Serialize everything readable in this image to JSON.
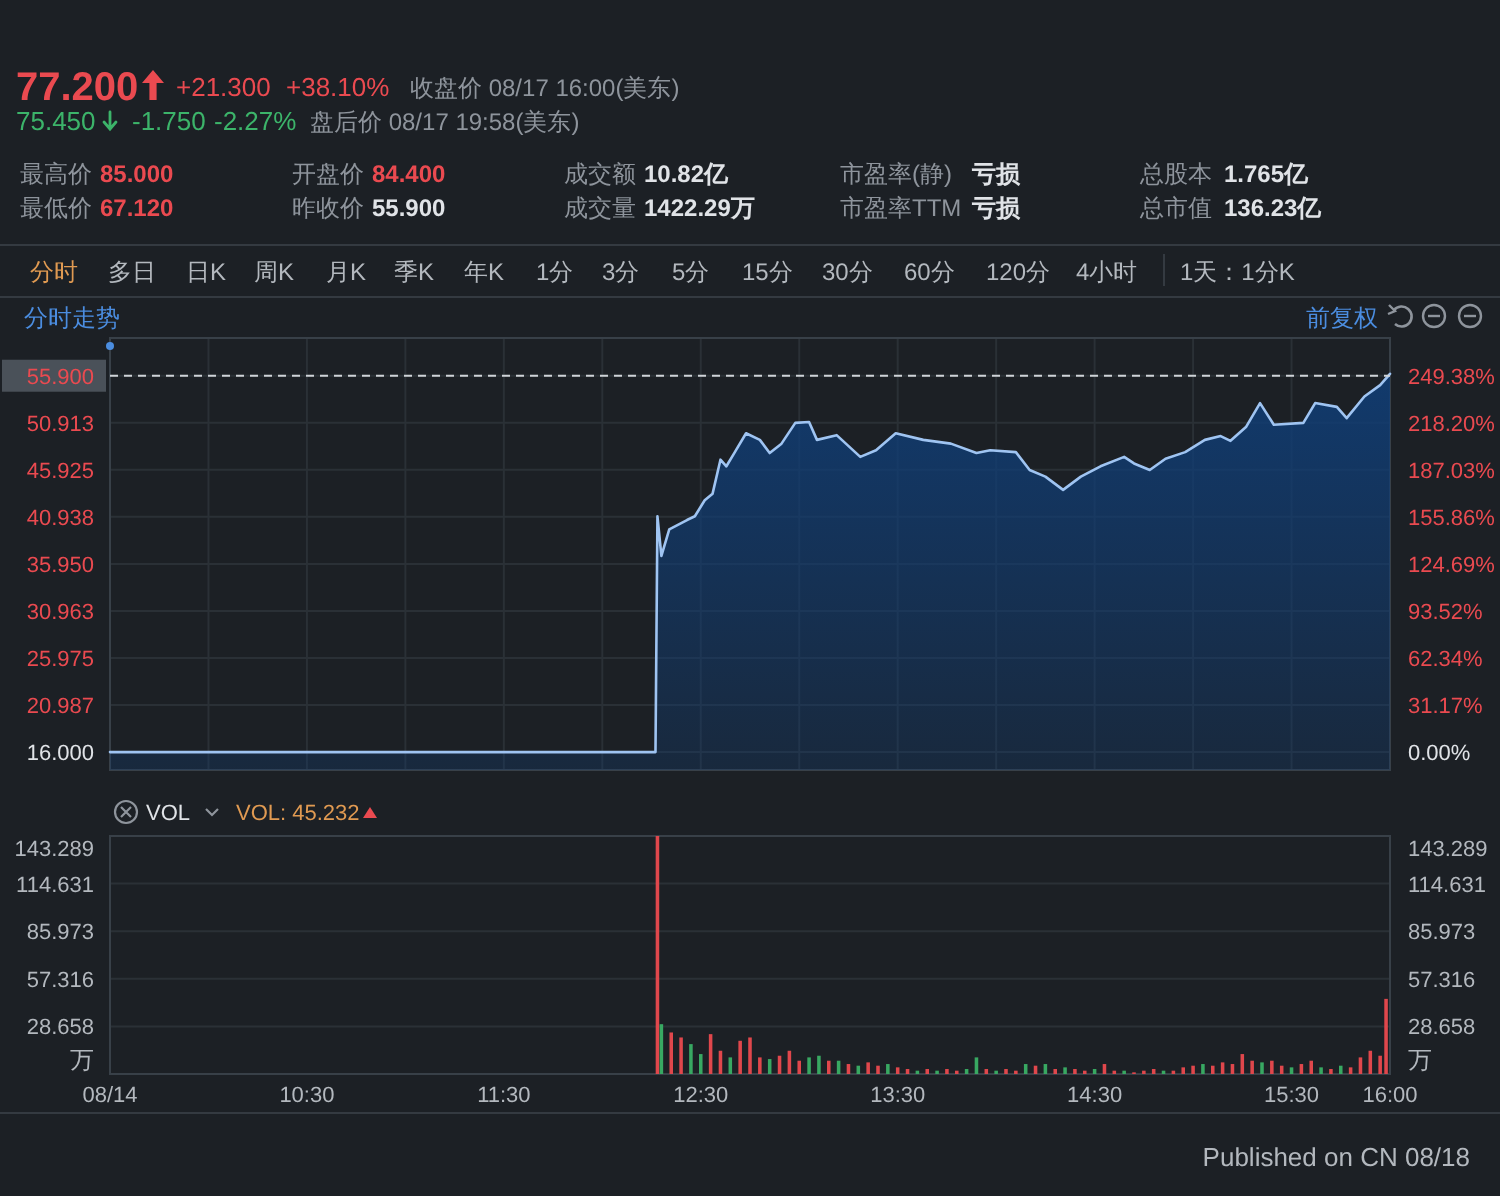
{
  "chart_data": [
    {
      "type": "other",
      "annotations": [
        "77.200",
        "+21.300",
        "+38.10%",
        "收盘价 08/17 16:00(美东)",
        "75.450",
        "-1.750",
        "-2.27%",
        "盘后价 08/17 19:58(美东)",
        "最高价",
        "85.000",
        "最低价",
        "67.120",
        "开盘价",
        "84.400",
        "昨收价",
        "55.900",
        "成交额",
        "10.82亿",
        "成交量",
        "1422.29万",
        "市盈率(静)",
        "亏损",
        "市盈率TTM",
        "亏损",
        "总股本",
        "1.765亿",
        "总市值",
        "136.23亿",
        "分时",
        "多日",
        "日K",
        "周K",
        "月K",
        "季K",
        "年K",
        "1分",
        "3分",
        "5分",
        "15分",
        "30分",
        "60分",
        "120分",
        "4小时",
        "1天：1分K"
      ]
    },
    {
      "type": "area",
      "title": "分时走势",
      "annotations": [
        "前复权"
      ],
      "x": [
        9.5,
        12.27,
        12.28,
        12.3,
        12.34,
        12.43,
        12.47,
        12.52,
        12.56,
        12.6,
        12.63,
        12.67,
        12.73,
        12.8,
        12.85,
        12.91,
        12.98,
        13.05,
        13.09,
        13.19,
        13.31,
        13.39,
        13.49,
        13.63,
        13.77,
        13.9,
        13.97,
        14.1,
        14.17,
        14.25,
        14.34,
        14.43,
        14.53,
        14.65,
        14.7,
        14.78,
        14.86,
        14.96,
        15.06,
        15.14,
        15.19,
        15.27,
        15.34,
        15.41,
        15.56,
        15.62,
        15.73,
        15.78,
        15.87,
        15.95,
        16
      ],
      "values": [
        16,
        16,
        41.0,
        36.8,
        39.6,
        40.6,
        41.0,
        42.7,
        43.4,
        47.0,
        46.3,
        47.7,
        49.8,
        49.1,
        47.7,
        48.7,
        50.9,
        51.0,
        49.1,
        49.6,
        47.3,
        48.0,
        49.8,
        49.1,
        48.7,
        47.7,
        48.0,
        47.8,
        45.9,
        45.2,
        43.8,
        45.2,
        46.3,
        47.3,
        46.6,
        45.9,
        47.1,
        47.8,
        49.1,
        49.5,
        49.0,
        50.5,
        53.0,
        50.7,
        50.9,
        53.0,
        52.6,
        51.4,
        53.7,
        54.9,
        56.1
      ],
      "color": "#9fc4f2",
      "xlim": [
        9.5,
        16
      ],
      "xticks": [
        9.5,
        10,
        10.5,
        11,
        11.5,
        12,
        12.5,
        13,
        13.5,
        14,
        14.5,
        15,
        15.5,
        16
      ],
      "ylim": [
        14.1,
        59.9
      ],
      "yticks": [
        {
          "value": 16,
          "label": "16.000"
        },
        20.987,
        25.975,
        30.963,
        {
          "value": 35.95,
          "label": "35.950"
        },
        40.938,
        45.925,
        50.913,
        {
          "value": 55.9,
          "label": "55.900"
        }
      ],
      "y2lim": [
        -11.9,
        274.4
      ],
      "y2ticks": [
        {
          "value": 0,
          "label": "0.00%"
        },
        {
          "value": 31.17,
          "label": "31.17%"
        },
        {
          "value": 62.34,
          "label": "62.34%"
        },
        {
          "value": 93.52,
          "label": "93.52%"
        },
        {
          "value": 124.69,
          "label": "124.69%"
        },
        {
          "value": 155.86,
          "label": "155.86%"
        },
        {
          "value": 187.03,
          "label": "187.03%"
        },
        {
          "value": 218.2,
          "label": "218.20%"
        },
        {
          "value": 249.38,
          "label": "249.38%"
        }
      ],
      "ref_lines": [
        {
          "axis": "y",
          "value": 55.9,
          "color": "#cfd3d8",
          "line_style": "dashed"
        }
      ],
      "grid": true,
      "tick_labels": "y"
    },
    {
      "type": "bar",
      "title": "VOL",
      "annotations": [
        "VOL: 45.232",
        "Published on CN 08/18"
      ],
      "x": [
        12.28,
        12.3,
        12.35,
        12.4,
        12.45,
        12.5,
        12.55,
        12.6,
        12.65,
        12.7,
        12.75,
        12.8,
        12.85,
        12.9,
        12.95,
        13,
        13.05,
        13.1,
        13.15,
        13.2,
        13.25,
        13.3,
        13.35,
        13.4,
        13.45,
        13.5,
        13.55,
        13.6,
        13.65,
        13.7,
        13.75,
        13.8,
        13.85,
        13.9,
        13.95,
        14,
        14.05,
        14.1,
        14.15,
        14.2,
        14.25,
        14.3,
        14.35,
        14.4,
        14.45,
        14.5,
        14.55,
        14.6,
        14.65,
        14.7,
        14.75,
        14.8,
        14.85,
        14.9,
        14.95,
        15,
        15.05,
        15.1,
        15.15,
        15.2,
        15.25,
        15.3,
        15.35,
        15.4,
        15.45,
        15.5,
        15.55,
        15.6,
        15.65,
        15.7,
        15.75,
        15.8,
        15.85,
        15.9,
        15.95,
        15.98
      ],
      "values": [
        143.289,
        30,
        25,
        22,
        18,
        12,
        24,
        14,
        10,
        20,
        22,
        10,
        9,
        11,
        14,
        8,
        10,
        11,
        8,
        8,
        6,
        5,
        7,
        5,
        6,
        4,
        3,
        2,
        3,
        2,
        3,
        2,
        3,
        10,
        3,
        2,
        3,
        2,
        6,
        5,
        6,
        3,
        4,
        3,
        2,
        3,
        6,
        2,
        2,
        1,
        2,
        3,
        2,
        2,
        4,
        5,
        6,
        5,
        7,
        6,
        12,
        8,
        7,
        8,
        5,
        4,
        6,
        8,
        4,
        3,
        5,
        4,
        10,
        14,
        11,
        45.232
      ],
      "colors": [
        "#e0474c",
        "#38a862",
        "#e0474c",
        "#e0474c",
        "#38a862",
        "#38a862",
        "#e0474c",
        "#e0474c",
        "#38a862",
        "#e0474c",
        "#e0474c",
        "#e0474c",
        "#38a862",
        "#e0474c",
        "#e0474c",
        "#e0474c",
        "#38a862",
        "#38a862",
        "#e0474c",
        "#38a862",
        "#e0474c",
        "#38a862",
        "#e0474c",
        "#e0474c",
        "#38a862",
        "#e0474c",
        "#e0474c",
        "#38a862",
        "#e0474c",
        "#38a862",
        "#e0474c",
        "#e0474c",
        "#38a862",
        "#38a862",
        "#e0474c",
        "#38a862",
        "#e0474c",
        "#e0474c",
        "#38a862",
        "#e0474c",
        "#38a862",
        "#e0474c",
        "#38a862",
        "#e0474c",
        "#e0474c",
        "#38a862",
        "#e0474c",
        "#e0474c",
        "#38a862",
        "#e0474c",
        "#e0474c",
        "#e0474c",
        "#38a862",
        "#e0474c",
        "#e0474c",
        "#e0474c",
        "#38a862",
        "#e0474c",
        "#e0474c",
        "#e0474c",
        "#e0474c",
        "#e0474c",
        "#38a862",
        "#e0474c",
        "#e0474c",
        "#38a862",
        "#e0474c",
        "#e0474c",
        "#38a862",
        "#e0474c",
        "#38a862",
        "#e0474c",
        "#e0474c",
        "#e0474c",
        "#e0474c",
        "#e0474c"
      ],
      "xlim": [
        9.5,
        16
      ],
      "xticks": [
        {
          "value": 9.5,
          "label": "08/14"
        },
        {
          "value": 10.5,
          "label": "10:30"
        },
        {
          "value": 11.5,
          "label": "11:30"
        },
        {
          "value": 12.5,
          "label": "12:30"
        },
        {
          "value": 13.5,
          "label": "13:30"
        },
        {
          "value": 14.5,
          "label": "14:30"
        },
        {
          "value": 15.5,
          "label": "15:30"
        },
        {
          "value": 16,
          "label": "16:00"
        }
      ],
      "ylim": [
        0,
        143.289
      ],
      "yticks": [
        28.658,
        57.316,
        85.973,
        114.631,
        143.289
      ],
      "y2lim": [
        0,
        143.289
      ],
      "y2ticks": [
        28.658,
        57.316,
        85.973,
        114.631,
        143.289
      ],
      "ylabel": "万",
      "y2label": "万",
      "grid": "y"
    }
  ]
}
